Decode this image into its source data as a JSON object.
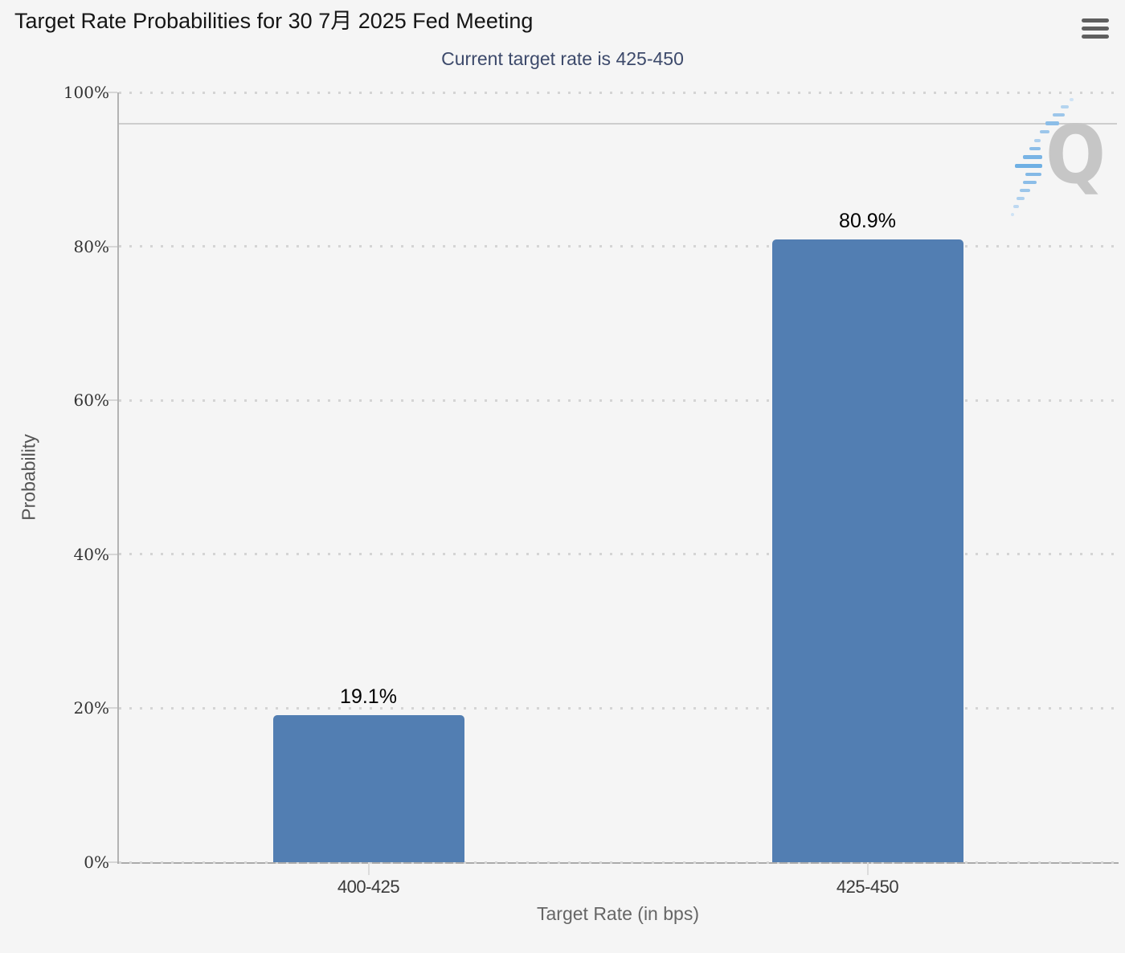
{
  "header": {
    "title": "Target Rate Probabilities for 30 7月 2025 Fed Meeting",
    "subtitle": "Current target rate is 425-450",
    "menu_icon": "hamburger-menu-icon"
  },
  "chart_data": {
    "type": "bar",
    "title": "Target Rate Probabilities for 30 7月 2025 Fed Meeting",
    "subtitle": "Current target rate is 425-450",
    "categories": [
      "400-425",
      "425-450"
    ],
    "values": [
      19.1,
      80.9
    ],
    "data_labels": [
      "19.1%",
      "80.9%"
    ],
    "xlabel": "Target Rate (in bps)",
    "ylabel": "Probability",
    "ylim": [
      0,
      100
    ],
    "yticks": [
      0,
      20,
      40,
      60,
      80,
      100
    ],
    "ytick_labels": [
      "0%",
      "20%",
      "40%",
      "60%",
      "80%",
      "100%"
    ],
    "legend": "none",
    "grid": "dotted-horizontal",
    "reference_line_value": 95.8,
    "colors": {
      "bar": "#527eb2",
      "background": "#f5f5f5",
      "subtitle_text": "#3d4a6b",
      "axis_line": "#b3b3b3",
      "gridline": "#d4d4d4"
    }
  },
  "watermark": {
    "letter": "Q"
  }
}
